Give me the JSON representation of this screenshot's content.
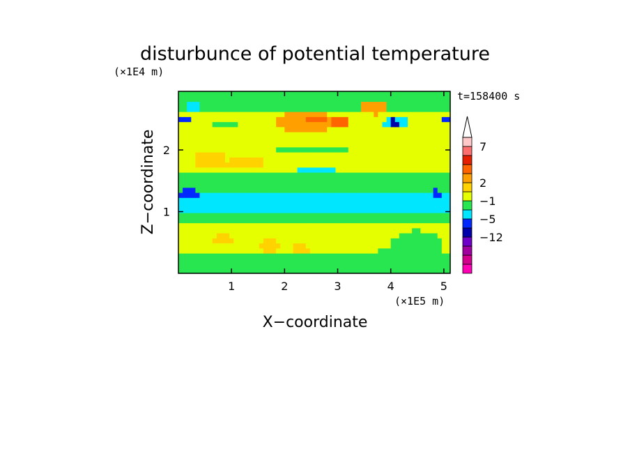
{
  "chart_data": {
    "type": "heatmap",
    "title": "disturbunce of potential temperature",
    "time_label": "t=158400 s",
    "xlabel": "X−coordinate",
    "ylabel": "Z−coordinate",
    "x_unit": "(×1E5 m)",
    "y_unit": "(×1E4 m)",
    "xlim": [
      0,
      5.12
    ],
    "ylim": [
      0,
      2.95
    ],
    "x_ticks": [
      1,
      2,
      3,
      4,
      5
    ],
    "x_tick_labels": [
      "1",
      "2",
      "3",
      "4",
      "5"
    ],
    "y_ticks": [
      1,
      2
    ],
    "y_tick_labels": [
      "1",
      "2"
    ],
    "colorbar": {
      "labels": [
        {
          "level": 14,
          "text": "7"
        },
        {
          "level": 10,
          "text": "2"
        },
        {
          "level": 8,
          "text": "−1"
        },
        {
          "level": 6,
          "text": "−5"
        },
        {
          "level": 4,
          "text": "−12"
        }
      ],
      "colors": [
        "#ff00b4",
        "#d2008c",
        "#a000a0",
        "#6e00c8",
        "#0000aa",
        "#0028ff",
        "#00e6ff",
        "#28e650",
        "#e6ff00",
        "#ffd200",
        "#ffa000",
        "#ff6400",
        "#e61e00",
        "#ff6e6e",
        "#ffc8c8"
      ],
      "extend_top": true
    },
    "grid": false,
    "x_cells": 64,
    "y_cells": 36,
    "regions": [
      {
        "zmin": 0.0,
        "zmax": 0.35,
        "level": 7,
        "desc": "green near surface"
      },
      {
        "zmin": 0.35,
        "zmax": 0.8,
        "level": 8,
        "desc": "yellow lower layer"
      },
      {
        "zmin": 0.8,
        "zmax": 1.0,
        "level": 7,
        "desc": "green"
      },
      {
        "zmin": 1.0,
        "zmax": 1.35,
        "level": 6,
        "desc": "cyan band"
      },
      {
        "zmin": 1.35,
        "zmax": 1.6,
        "level": 7,
        "desc": "green"
      },
      {
        "zmin": 1.6,
        "zmax": 2.6,
        "level": 8,
        "desc": "yellow upper layer"
      },
      {
        "zmin": 2.6,
        "zmax": 2.95,
        "level": 7,
        "desc": "green top"
      }
    ]
  }
}
